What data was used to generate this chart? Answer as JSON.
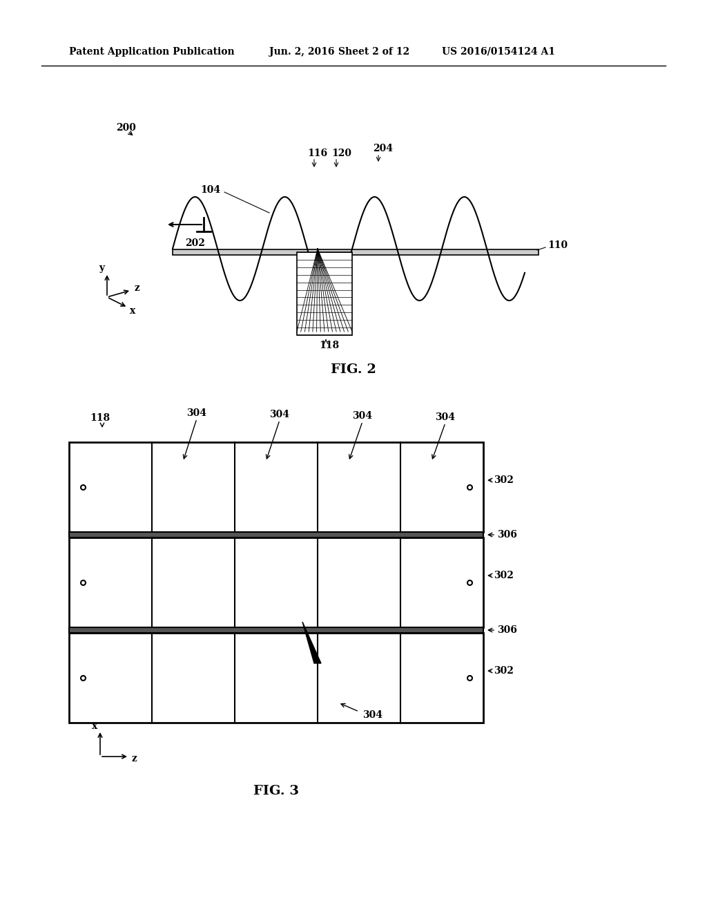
{
  "bg_color": "#ffffff",
  "header_text": "Patent Application Publication",
  "header_date": "Jun. 2, 2016",
  "header_sheet": "Sheet 2 of 12",
  "header_patent": "US 2016/0154124 A1",
  "fig2_label": "FIG. 2",
  "fig3_label": "FIG. 3",
  "label_200": "200",
  "label_104": "104",
  "label_202": "202",
  "label_110": "110",
  "label_116": "116",
  "label_120": "120",
  "label_204": "204",
  "label_118_fig2": "118",
  "label_118_fig3": "118",
  "label_302": "302",
  "label_304": "304",
  "label_306": "306"
}
